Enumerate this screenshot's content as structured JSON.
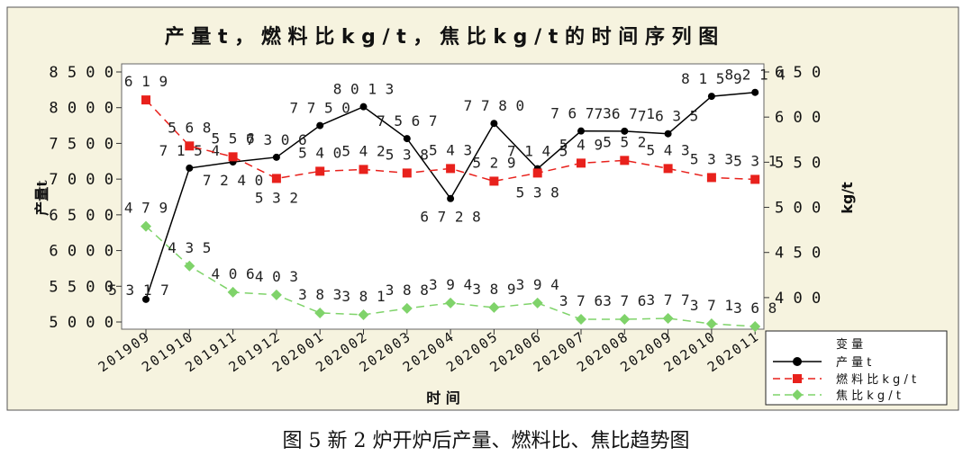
{
  "caption": "图 5  新 2 炉开炉后产量、燃料比、焦比趋势图",
  "colors": {
    "background": "#f6f3df",
    "plot_background": "#ffffff",
    "output": "#000000",
    "fuel_ratio": "#e8211c",
    "coke_ratio": "#7fd36a"
  },
  "chart_data": {
    "type": "line",
    "title": "产 量 t ， 燃 料 比 k g / t ， 焦 比 k g / t  的 时 间 序 列 图",
    "xlabel": "时 间",
    "ylabel_left": "产量t",
    "ylabel_right": "kg/t",
    "categories": [
      "201909",
      "201910",
      "201911",
      "201912",
      "202001",
      "202002",
      "202003",
      "202004",
      "202005",
      "202006",
      "202007",
      "202008",
      "202009",
      "202010",
      "202011"
    ],
    "ylim_left": [
      5000,
      8500
    ],
    "yticks_left": [
      "5 0 0 0",
      "5 5 0 0",
      "6 0 0 0",
      "6 5 0 0",
      "7 0 0 0",
      "7 5 0 0",
      "8 0 0 0",
      "8 5 0 0"
    ],
    "ylim_right": [
      370,
      650
    ],
    "yticks_right": [
      "4 0 0",
      "4 5 0",
      "5 0 0",
      "5 5 0",
      "6 0 0",
      "6 5 0"
    ],
    "yticks_right_values": [
      400,
      450,
      500,
      550,
      600,
      650
    ],
    "legend_position": "bottom-right",
    "series": [
      {
        "name": "产 量 t",
        "axis": "left",
        "style": "solid-circle",
        "values": [
          5317,
          7154,
          7240,
          7306,
          7750,
          8013,
          7567,
          6728,
          7780,
          7145,
          7673,
          7671,
          7635,
          8159,
          8214
        ],
        "labels": [
          "5 3 1 7",
          "7 1 5 4",
          "7 2 4 0",
          "7 3 0 6",
          "7 7 5 0",
          "8 0 1 3",
          "7 5 6 7",
          "6 7 2 8",
          "7 7 8 0",
          "7 1 4 5",
          "7 6 7 3",
          "7 6 7 1",
          "7 6 3 5",
          "8 1 5 9",
          "8 2 1 4"
        ]
      },
      {
        "name": "燃 料 比 k g / t",
        "axis": "right",
        "style": "dashed-square",
        "values": [
          619,
          568,
          556,
          532,
          540,
          542,
          538,
          543,
          529,
          538,
          549,
          552,
          543,
          533,
          531
        ],
        "labels": [
          "6 1 9",
          "5 6 8",
          "5 5 6",
          "5 3 2",
          "5 4 0",
          "5 4 2",
          "5 3 8",
          "5 4 3",
          "5 2 9",
          "5 3 8",
          "5 4 9",
          "5 5 2",
          "5 4 3",
          "5 3 3",
          "5 3 1"
        ]
      },
      {
        "name": "焦 比 k g / t",
        "axis": "right",
        "style": "dashed-diamond",
        "values": [
          479,
          435,
          406,
          403,
          383,
          381,
          388,
          394,
          389,
          394,
          376,
          376,
          377,
          371,
          368
        ],
        "labels": [
          "4 7 9",
          "4 3 5",
          "4 0 6",
          "4 0 3",
          "3 8 3",
          "3 8 1",
          "3 8 8",
          "3 9 4",
          "3 8 9",
          "3 9 4",
          "3 7 6",
          "3 7 6",
          "3 7 7",
          "3 7 1",
          "3 6 8"
        ]
      }
    ]
  }
}
